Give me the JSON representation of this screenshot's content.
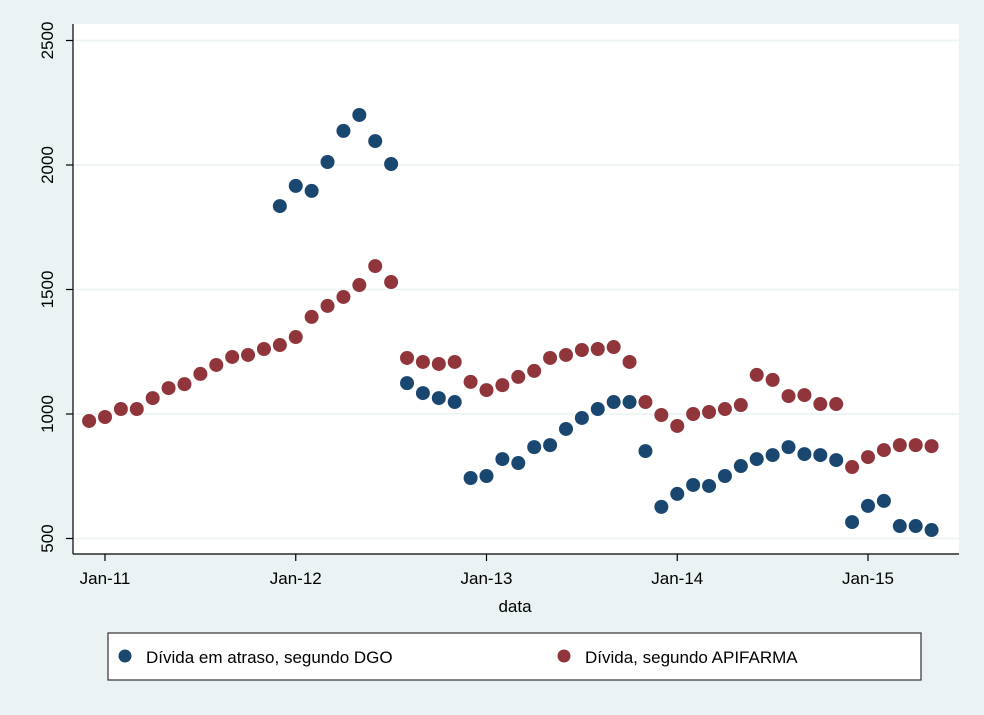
{
  "chart_data": {
    "type": "scatter",
    "title": "",
    "xlabel": "data",
    "ylabel": "",
    "ylim": [
      500,
      2500
    ],
    "yticks": [
      500,
      1000,
      1500,
      2000,
      2500
    ],
    "ytick_labels": [
      "500",
      "1000",
      "1500",
      "2000",
      "2500"
    ],
    "xticks": [
      "2011-01",
      "2012-01",
      "2013-01",
      "2014-01",
      "2015-01"
    ],
    "xtick_labels": [
      "Jan-11",
      "Jan-12",
      "Jan-13",
      "Jan-14",
      "Jan-15"
    ],
    "xlim": [
      "2010-11",
      "2015-07"
    ],
    "grid": true,
    "legend_position": "bottom",
    "colors": {
      "background": "#eaf2f3",
      "plot_background": "#ffffff",
      "grid": "#eaf2f3",
      "dgo": "#1a476f",
      "apifarma": "#90353b"
    },
    "series": [
      {
        "name": "Dívida em atraso, segundo DGO",
        "color": "#1a476f",
        "x": [
          "2011-12",
          "2012-01",
          "2012-02",
          "2012-03",
          "2012-04",
          "2012-05",
          "2012-06",
          "2012-07",
          "2012-08",
          "2012-09",
          "2012-10",
          "2012-11",
          "2012-12",
          "2013-01",
          "2013-02",
          "2013-03",
          "2013-04",
          "2013-05",
          "2013-06",
          "2013-07",
          "2013-08",
          "2013-09",
          "2013-10",
          "2013-11",
          "2013-12",
          "2014-01",
          "2014-02",
          "2014-03",
          "2014-04",
          "2014-05",
          "2014-06",
          "2014-07",
          "2014-08",
          "2014-09",
          "2014-10",
          "2014-11",
          "2014-12",
          "2015-01",
          "2015-02",
          "2015-03",
          "2015-04",
          "2015-05"
        ],
        "y": [
          1835,
          1916,
          1896,
          2012,
          2137,
          2201,
          2096,
          2004,
          1124,
          1084,
          1064,
          1048,
          743,
          751,
          819,
          803,
          867,
          875,
          940,
          984,
          1020,
          1048,
          1048,
          851,
          627,
          679,
          715,
          711,
          751,
          791,
          819,
          835,
          867,
          839,
          835,
          815,
          566,
          631,
          651,
          550,
          550,
          534
        ]
      },
      {
        "name": "Dívida, segundo APIFARMA",
        "color": "#90353b",
        "x": [
          "2010-12",
          "2011-01",
          "2011-02",
          "2011-03",
          "2011-04",
          "2011-05",
          "2011-06",
          "2011-07",
          "2011-08",
          "2011-09",
          "2011-10",
          "2011-11",
          "2011-12",
          "2012-01",
          "2012-02",
          "2012-03",
          "2012-04",
          "2012-05",
          "2012-06",
          "2012-07",
          "2012-08",
          "2012-09",
          "2012-10",
          "2012-11",
          "2012-12",
          "2013-01",
          "2013-02",
          "2013-03",
          "2013-04",
          "2013-05",
          "2013-06",
          "2013-07",
          "2013-08",
          "2013-09",
          "2013-10",
          "2013-11",
          "2013-12",
          "2014-01",
          "2014-02",
          "2014-03",
          "2014-04",
          "2014-05",
          "2014-06",
          "2014-07",
          "2014-08",
          "2014-09",
          "2014-10",
          "2014-11",
          "2014-12",
          "2015-01",
          "2015-02",
          "2015-03",
          "2015-04",
          "2015-05"
        ],
        "y": [
          972,
          988,
          1020,
          1020,
          1064,
          1104,
          1120,
          1161,
          1197,
          1229,
          1237,
          1261,
          1277,
          1309,
          1390,
          1434,
          1470,
          1518,
          1594,
          1530,
          1225,
          1209,
          1201,
          1209,
          1129,
          1096,
          1116,
          1149,
          1173,
          1225,
          1237,
          1257,
          1261,
          1269,
          1209,
          1048,
          996,
          952,
          1000,
          1008,
          1020,
          1036,
          1157,
          1137,
          1072,
          1076,
          1040,
          1040,
          787,
          827,
          855,
          875,
          875,
          871
        ]
      }
    ],
    "legend": [
      {
        "label": "Dívida em atraso, segundo DGO",
        "color": "#1a476f"
      },
      {
        "label": "Dívida, segundo APIFARMA",
        "color": "#90353b"
      }
    ]
  }
}
